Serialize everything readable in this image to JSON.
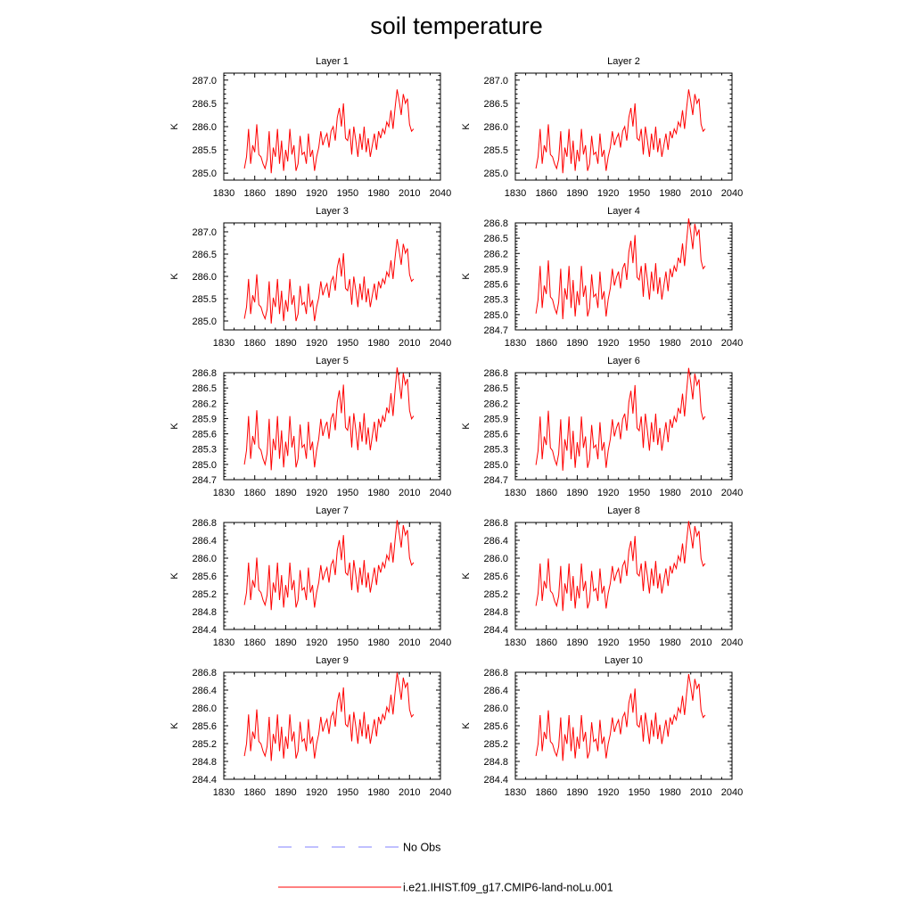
{
  "page": {
    "title": "soil temperature"
  },
  "legend": {
    "entries": [
      {
        "label": "No Obs",
        "color": "#8080ff",
        "style": "dashed"
      },
      {
        "label": "i.e21.IHIST.f09_g17.CMIP6-land-noLu.001",
        "color": "#ff0000",
        "style": "solid"
      }
    ]
  },
  "chart_data": [
    {
      "type": "line",
      "title": "Layer 1",
      "ylabel": "K",
      "xlim": [
        1830,
        2040
      ],
      "ylim": [
        284.85,
        287.15
      ],
      "xticks": [
        1830,
        1860,
        1890,
        1920,
        1950,
        1980,
        2010,
        2040
      ],
      "yticks": [
        285.0,
        285.5,
        286.0,
        286.5,
        287.0
      ],
      "ytick_labels": [
        "285.0",
        "285.5",
        "286.0",
        "286.5",
        "287.0"
      ],
      "series": [
        {
          "name": "i.e21.IHIST.f09_g17.CMIP6-land-noLu.001",
          "color": "#ff0000"
        }
      ],
      "offset": 0.0,
      "scale": 1.0
    },
    {
      "type": "line",
      "title": "Layer 2",
      "ylabel": "K",
      "xlim": [
        1830,
        2040
      ],
      "ylim": [
        284.85,
        287.15
      ],
      "xticks": [
        1830,
        1860,
        1890,
        1920,
        1950,
        1980,
        2010,
        2040
      ],
      "yticks": [
        285.0,
        285.5,
        286.0,
        286.5,
        287.0
      ],
      "ytick_labels": [
        "285.0",
        "285.5",
        "286.0",
        "286.5",
        "287.0"
      ],
      "series": [
        {
          "name": "i.e21.IHIST.f09_g17.CMIP6-land-noLu.001",
          "color": "#ff0000"
        }
      ],
      "offset": 0.0,
      "scale": 1.0
    },
    {
      "type": "line",
      "title": "Layer 3",
      "ylabel": "K",
      "xlim": [
        1830,
        2040
      ],
      "ylim": [
        284.8,
        287.2
      ],
      "xticks": [
        1830,
        1860,
        1890,
        1920,
        1950,
        1980,
        2010,
        2040
      ],
      "yticks": [
        285.0,
        285.5,
        286.0,
        286.5,
        287.0
      ],
      "ytick_labels": [
        "285.0",
        "285.5",
        "286.0",
        "286.5",
        "287.0"
      ],
      "series": [
        {
          "name": "i.e21.IHIST.f09_g17.CMIP6-land-noLu.001",
          "color": "#ff0000"
        }
      ],
      "offset": -0.02,
      "scale": 1.05
    },
    {
      "type": "line",
      "title": "Layer 4",
      "ylabel": "K",
      "xlim": [
        1830,
        2040
      ],
      "ylim": [
        284.7,
        286.8
      ],
      "xticks": [
        1830,
        1860,
        1890,
        1920,
        1950,
        1980,
        2010,
        2040
      ],
      "yticks": [
        284.7,
        285.0,
        285.3,
        285.6,
        285.9,
        286.2,
        286.5,
        286.8
      ],
      "ytick_labels": [
        "284.7",
        "285.0",
        "285.3",
        "285.6",
        "285.9",
        "286.2",
        "286.5",
        "286.8"
      ],
      "series": [
        {
          "name": "i.e21.IHIST.f09_g17.CMIP6-land-noLu.001",
          "color": "#ff0000"
        }
      ],
      "offset": -0.02,
      "scale": 1.1
    },
    {
      "type": "line",
      "title": "Layer 5",
      "ylabel": "K",
      "xlim": [
        1830,
        2040
      ],
      "ylim": [
        284.7,
        286.8
      ],
      "xticks": [
        1830,
        1860,
        1890,
        1920,
        1950,
        1980,
        2010,
        2040
      ],
      "yticks": [
        284.7,
        285.0,
        285.3,
        285.6,
        285.9,
        286.2,
        286.5,
        286.8
      ],
      "ytick_labels": [
        "284.7",
        "285.0",
        "285.3",
        "285.6",
        "285.9",
        "286.2",
        "286.5",
        "286.8"
      ],
      "series": [
        {
          "name": "i.e21.IHIST.f09_g17.CMIP6-land-noLu.001",
          "color": "#ff0000"
        }
      ],
      "offset": -0.03,
      "scale": 1.12
    },
    {
      "type": "line",
      "title": "Layer 6",
      "ylabel": "K",
      "xlim": [
        1830,
        2040
      ],
      "ylim": [
        284.7,
        286.8
      ],
      "xticks": [
        1830,
        1860,
        1890,
        1920,
        1950,
        1980,
        2010,
        2040
      ],
      "yticks": [
        284.7,
        285.0,
        285.3,
        285.6,
        285.9,
        286.2,
        286.5,
        286.8
      ],
      "ytick_labels": [
        "284.7",
        "285.0",
        "285.3",
        "285.6",
        "285.9",
        "286.2",
        "286.5",
        "286.8"
      ],
      "series": [
        {
          "name": "i.e21.IHIST.f09_g17.CMIP6-land-noLu.001",
          "color": "#ff0000"
        }
      ],
      "offset": -0.04,
      "scale": 1.12
    },
    {
      "type": "line",
      "title": "Layer 7",
      "ylabel": "K",
      "xlim": [
        1830,
        2040
      ],
      "ylim": [
        284.4,
        286.8
      ],
      "xticks": [
        1830,
        1860,
        1890,
        1920,
        1950,
        1980,
        2010,
        2040
      ],
      "yticks": [
        284.4,
        284.8,
        285.2,
        285.6,
        286.0,
        286.4,
        286.8
      ],
      "ytick_labels": [
        "284.4",
        "284.8",
        "285.2",
        "285.6",
        "286.0",
        "286.4",
        "286.8"
      ],
      "series": [
        {
          "name": "i.e21.IHIST.f09_g17.CMIP6-land-noLu.001",
          "color": "#ff0000"
        }
      ],
      "offset": -0.08,
      "scale": 1.12
    },
    {
      "type": "line",
      "title": "Layer 8",
      "ylabel": "K",
      "xlim": [
        1830,
        2040
      ],
      "ylim": [
        284.4,
        286.8
      ],
      "xticks": [
        1830,
        1860,
        1890,
        1920,
        1950,
        1980,
        2010,
        2040
      ],
      "yticks": [
        284.4,
        284.8,
        285.2,
        285.6,
        286.0,
        286.4,
        286.8
      ],
      "ytick_labels": [
        "284.4",
        "284.8",
        "285.2",
        "285.6",
        "286.0",
        "286.4",
        "286.8"
      ],
      "series": [
        {
          "name": "i.e21.IHIST.f09_g17.CMIP6-land-noLu.001",
          "color": "#ff0000"
        }
      ],
      "offset": -0.1,
      "scale": 1.12
    },
    {
      "type": "line",
      "title": "Layer 9",
      "ylabel": "K",
      "xlim": [
        1830,
        2040
      ],
      "ylim": [
        284.4,
        286.8
      ],
      "xticks": [
        1830,
        1860,
        1890,
        1920,
        1950,
        1980,
        2010,
        2040
      ],
      "yticks": [
        284.4,
        284.8,
        285.2,
        285.6,
        286.0,
        286.4,
        286.8
      ],
      "ytick_labels": [
        "284.4",
        "284.8",
        "285.2",
        "285.6",
        "286.0",
        "286.4",
        "286.8"
      ],
      "series": [
        {
          "name": "i.e21.IHIST.f09_g17.CMIP6-land-noLu.001",
          "color": "#ff0000"
        }
      ],
      "offset": -0.12,
      "scale": 1.1
    },
    {
      "type": "line",
      "title": "Layer 10",
      "ylabel": "K",
      "xlim": [
        1830,
        2040
      ],
      "ylim": [
        284.4,
        286.8
      ],
      "xticks": [
        1830,
        1860,
        1890,
        1920,
        1950,
        1980,
        2010,
        2040
      ],
      "yticks": [
        284.4,
        284.8,
        285.2,
        285.6,
        286.0,
        286.4,
        286.8
      ],
      "ytick_labels": [
        "284.4",
        "284.8",
        "285.2",
        "285.6",
        "286.0",
        "286.4",
        "286.8"
      ],
      "series": [
        {
          "name": "i.e21.IHIST.f09_g17.CMIP6-land-noLu.001",
          "color": "#ff0000"
        }
      ],
      "offset": -0.13,
      "scale": 1.08
    }
  ],
  "base_series": {
    "x": [
      1850,
      1852,
      1854,
      1856,
      1858,
      1860,
      1862,
      1864,
      1866,
      1868,
      1870,
      1872,
      1874,
      1876,
      1878,
      1880,
      1882,
      1884,
      1886,
      1888,
      1890,
      1892,
      1894,
      1896,
      1898,
      1900,
      1902,
      1904,
      1906,
      1908,
      1910,
      1912,
      1914,
      1916,
      1918,
      1920,
      1922,
      1924,
      1926,
      1928,
      1930,
      1932,
      1934,
      1936,
      1938,
      1940,
      1942,
      1944,
      1946,
      1948,
      1950,
      1952,
      1954,
      1956,
      1958,
      1960,
      1962,
      1964,
      1966,
      1968,
      1970,
      1972,
      1974,
      1976,
      1978,
      1980,
      1982,
      1984,
      1986,
      1988,
      1990,
      1992,
      1994,
      1996,
      1998,
      2000,
      2002,
      2004,
      2006,
      2008,
      2010,
      2012,
      2014
    ],
    "y": [
      285.1,
      285.35,
      285.95,
      285.2,
      285.6,
      285.45,
      286.05,
      285.4,
      285.35,
      285.2,
      285.1,
      285.3,
      285.9,
      285.0,
      285.55,
      285.35,
      285.95,
      285.2,
      285.7,
      285.05,
      285.5,
      285.25,
      285.95,
      285.4,
      285.6,
      285.05,
      285.2,
      285.8,
      285.4,
      285.45,
      285.2,
      285.85,
      285.35,
      285.5,
      285.05,
      285.35,
      285.55,
      285.9,
      285.6,
      285.75,
      285.85,
      285.55,
      285.9,
      286.0,
      285.7,
      286.2,
      286.4,
      286.0,
      286.5,
      285.75,
      285.7,
      285.95,
      285.4,
      286.0,
      285.7,
      285.35,
      285.85,
      285.5,
      286.0,
      285.45,
      285.75,
      285.35,
      285.6,
      285.85,
      285.5,
      285.9,
      285.75,
      285.95,
      285.85,
      286.1,
      286.0,
      286.35,
      285.95,
      286.4,
      286.8,
      286.55,
      286.25,
      286.7,
      286.5,
      286.6,
      286.05,
      285.9,
      285.95
    ]
  }
}
